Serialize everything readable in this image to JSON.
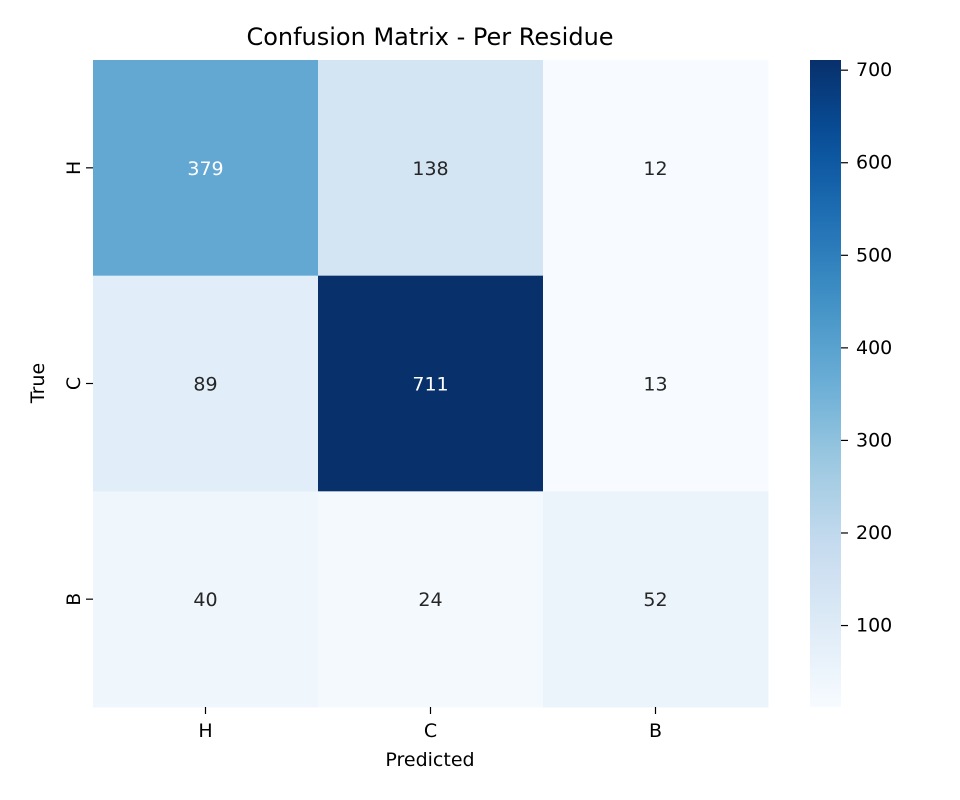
{
  "chart_data": {
    "type": "heatmap",
    "title": "Confusion Matrix - Per Residue",
    "xlabel": "Predicted",
    "ylabel": "True",
    "x_categories": [
      "H",
      "C",
      "B"
    ],
    "y_categories": [
      "H",
      "C",
      "B"
    ],
    "values": [
      [
        379,
        138,
        12
      ],
      [
        89,
        711,
        13
      ],
      [
        40,
        24,
        52
      ]
    ],
    "colormap": "Blues",
    "colorbar": {
      "min": 12,
      "max": 711,
      "ticks": [
        100,
        200,
        300,
        400,
        500,
        600,
        700
      ]
    },
    "grid": false,
    "annotations": true
  }
}
